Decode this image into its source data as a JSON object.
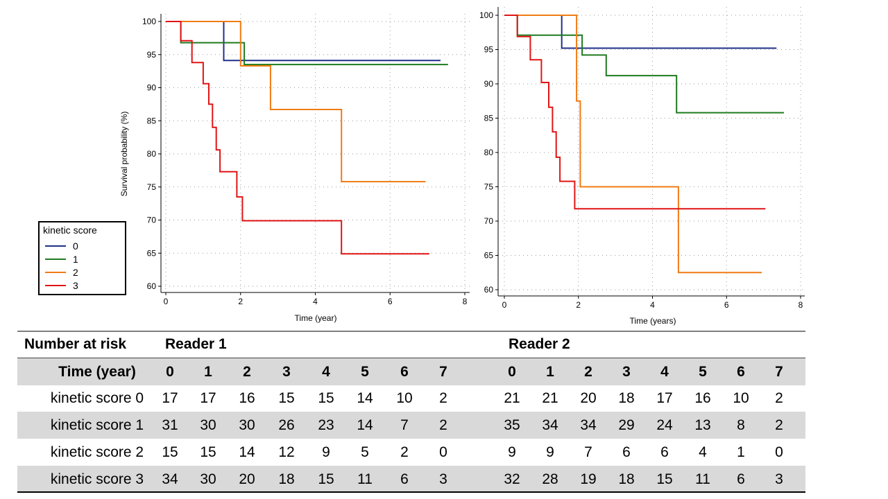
{
  "colors": {
    "score0": "#1f2f8a",
    "score1": "#1e7a1e",
    "score2": "#f07b12",
    "score3": "#e01414"
  },
  "chart_data": [
    {
      "type": "line",
      "step": true,
      "title": "Reader 1",
      "xlabel": "Time (year)",
      "ylabel": "Survival probability (%)",
      "xlim": [
        0,
        8
      ],
      "ylim": [
        60,
        100
      ],
      "xticks": [
        0,
        2,
        4,
        6,
        8
      ],
      "yticks": [
        60,
        65,
        70,
        75,
        80,
        85,
        90,
        95,
        100
      ],
      "grid": true,
      "legend": {
        "title": "kinetic score",
        "entries": [
          "0",
          "1",
          "2",
          "3"
        ],
        "position": "bottom-left"
      },
      "series": [
        {
          "name": "0",
          "color_key": "score0",
          "x": [
            0,
            1.55,
            1.55,
            7.35
          ],
          "y": [
            100,
            100,
            94.1,
            94.1
          ]
        },
        {
          "name": "1",
          "color_key": "score1",
          "x": [
            0,
            0.4,
            0.4,
            2.1,
            2.1,
            7.55
          ],
          "y": [
            100,
            100,
            96.8,
            96.8,
            93.5,
            93.5
          ]
        },
        {
          "name": "2",
          "color_key": "score2",
          "x": [
            0,
            2.0,
            2.0,
            2.8,
            2.8,
            4.7,
            4.7,
            6.95
          ],
          "y": [
            100,
            100,
            93.3,
            93.3,
            86.7,
            86.7,
            75.8,
            75.8
          ]
        },
        {
          "name": "3",
          "color_key": "score3",
          "x": [
            0,
            0.4,
            0.4,
            0.7,
            0.7,
            1.0,
            1.0,
            1.15,
            1.15,
            1.25,
            1.25,
            1.35,
            1.35,
            1.45,
            1.45,
            1.9,
            1.9,
            2.05,
            2.05,
            4.7,
            4.7,
            7.05
          ],
          "y": [
            100,
            100,
            97.1,
            97.1,
            93.8,
            93.8,
            90.6,
            90.6,
            87.5,
            87.5,
            84.0,
            84.0,
            80.6,
            80.6,
            77.3,
            77.3,
            73.5,
            73.5,
            69.9,
            69.9,
            64.9,
            64.9
          ]
        }
      ]
    },
    {
      "type": "line",
      "step": true,
      "title": "Reader 2",
      "xlabel": "Time (years)",
      "ylabel": "",
      "xlim": [
        0,
        8
      ],
      "ylim": [
        60,
        100
      ],
      "xticks": [
        0,
        2,
        4,
        6,
        8
      ],
      "yticks": [
        60,
        65,
        70,
        75,
        80,
        85,
        90,
        95,
        100
      ],
      "grid": true,
      "series": [
        {
          "name": "0",
          "color_key": "score0",
          "x": [
            0,
            1.55,
            1.55,
            7.35
          ],
          "y": [
            100,
            100,
            95.2,
            95.2
          ]
        },
        {
          "name": "1",
          "color_key": "score1",
          "x": [
            0,
            0.35,
            0.35,
            2.1,
            2.1,
            2.75,
            2.75,
            4.65,
            4.65,
            7.55
          ],
          "y": [
            100,
            100,
            97.1,
            97.1,
            94.2,
            94.2,
            91.2,
            91.2,
            85.8,
            85.8
          ]
        },
        {
          "name": "2",
          "color_key": "score2",
          "x": [
            0,
            1.95,
            1.95,
            2.05,
            2.05,
            4.7,
            4.7,
            6.95
          ],
          "y": [
            100,
            100,
            87.5,
            87.5,
            75.0,
            75.0,
            62.5,
            62.5
          ]
        },
        {
          "name": "3",
          "color_key": "score3",
          "x": [
            0,
            0.35,
            0.35,
            0.7,
            0.7,
            1.0,
            1.0,
            1.2,
            1.2,
            1.3,
            1.3,
            1.4,
            1.4,
            1.5,
            1.5,
            1.9,
            1.9,
            7.05
          ],
          "y": [
            100,
            100,
            96.9,
            96.9,
            93.5,
            93.5,
            90.2,
            90.2,
            86.6,
            86.6,
            83.0,
            83.0,
            79.3,
            79.3,
            75.8,
            75.8,
            71.8,
            71.8
          ]
        }
      ]
    }
  ],
  "risk_table": {
    "header": "Number at risk",
    "reader1_label": "Reader 1",
    "reader2_label": "Reader 2",
    "time_label": "Time (year)",
    "times": [
      "0",
      "1",
      "2",
      "3",
      "4",
      "5",
      "6",
      "7"
    ],
    "rows": [
      {
        "label": "kinetic score 0",
        "r1": [
          "17",
          "17",
          "16",
          "15",
          "15",
          "14",
          "10",
          "2"
        ],
        "r2": [
          "21",
          "21",
          "20",
          "18",
          "17",
          "16",
          "10",
          "2"
        ]
      },
      {
        "label": "kinetic score 1",
        "r1": [
          "31",
          "30",
          "30",
          "26",
          "23",
          "14",
          "7",
          "2"
        ],
        "r2": [
          "35",
          "34",
          "34",
          "29",
          "24",
          "13",
          "8",
          "2"
        ]
      },
      {
        "label": "kinetic score 2",
        "r1": [
          "15",
          "15",
          "14",
          "12",
          "9",
          "5",
          "2",
          "0"
        ],
        "r2": [
          "9",
          "9",
          "7",
          "6",
          "6",
          "4",
          "1",
          "0"
        ]
      },
      {
        "label": "kinetic score 3",
        "r1": [
          "34",
          "30",
          "20",
          "18",
          "15",
          "11",
          "6",
          "3"
        ],
        "r2": [
          "32",
          "28",
          "19",
          "18",
          "15",
          "11",
          "6",
          "3"
        ]
      }
    ]
  }
}
